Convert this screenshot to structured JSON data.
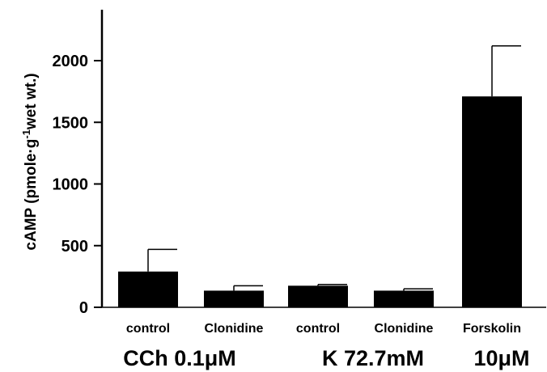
{
  "chart_data": {
    "type": "bar",
    "title": "",
    "xlabel": "",
    "ylabel": "cAMP (pmole·g",
    "ylabel_sup": "-1",
    "ylabel_tail": "wet wt.)",
    "ylim": [
      0,
      2400
    ],
    "yticks": [
      "0",
      "500",
      "1000",
      "1500",
      "2000"
    ],
    "ytick_values": [
      0,
      500,
      1000,
      1500,
      2000
    ],
    "categories": [
      "control",
      "Clonidine",
      "control",
      "Clonidine",
      "Forskolin"
    ],
    "values": [
      290,
      135,
      175,
      135,
      1710
    ],
    "errors": [
      180,
      40,
      10,
      15,
      410
    ],
    "groups": [
      {
        "label": "CCh 0.1μM",
        "categories": [
          0,
          1
        ]
      },
      {
        "label": "K 72.7mM",
        "categories": [
          2,
          3
        ]
      },
      {
        "label": "10μM",
        "categories": [
          4
        ]
      }
    ],
    "bar_color": "#000000",
    "grid": false,
    "legend": "none"
  }
}
